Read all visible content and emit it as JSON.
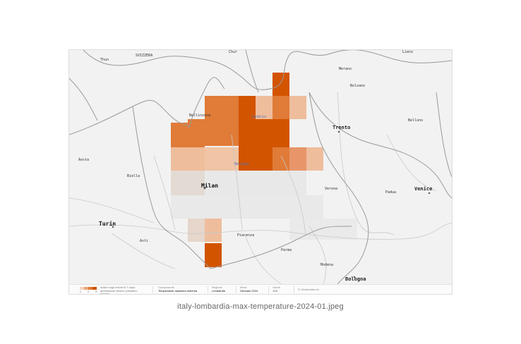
{
  "filename": "italy-lombardia-max-temperature-2024-01.jpeg",
  "map": {
    "labels": {
      "svizzera": "SVIZZERA",
      "thun": "Thun",
      "bellinzona": "Bellinzona",
      "merano": "Merano",
      "bolzano": "Bolzano",
      "sondrio": "Sondrio",
      "trento": "Trento",
      "belluno": "Belluno",
      "aosta": "Aosta",
      "biella": "Biella",
      "bergamo": "Bergamo",
      "milan": "Milan",
      "verona": "Verona",
      "padua": "Padua",
      "venice": "Venice",
      "turin": "Turin",
      "asti": "Asti",
      "piacenza": "Piacenza",
      "parma": "Parma",
      "modena": "Modena",
      "bologna": "Bologna",
      "chur": "Chur",
      "lienz": "Lienz"
    },
    "colors": {
      "background": "#f2f2f2",
      "high": "#d35400",
      "mid": "#e07b38",
      "low": "#eebd9c",
      "faint": "#e3d9d2",
      "neutral": "#e8e8e8"
    }
  },
  "legend": {
    "scale_colors": [
      "#f4d3bd",
      "#eca679",
      "#e07b38",
      "#cc5200"
    ],
    "scale_ticks": [
      "1",
      "2",
      "3"
    ],
    "description": "Indice sugli eventi di T dopo ammissione severo (climatico storico)",
    "component_label": "Componente",
    "component_value": "Temperature massima estrema",
    "region_label": "Regione",
    "region_value": "Lombardia",
    "period_label": "Mese",
    "period_value": "Gennaio 2024",
    "value_label": "Valore",
    "value_value": "-0.2",
    "credit": "© climatedata.eu"
  }
}
